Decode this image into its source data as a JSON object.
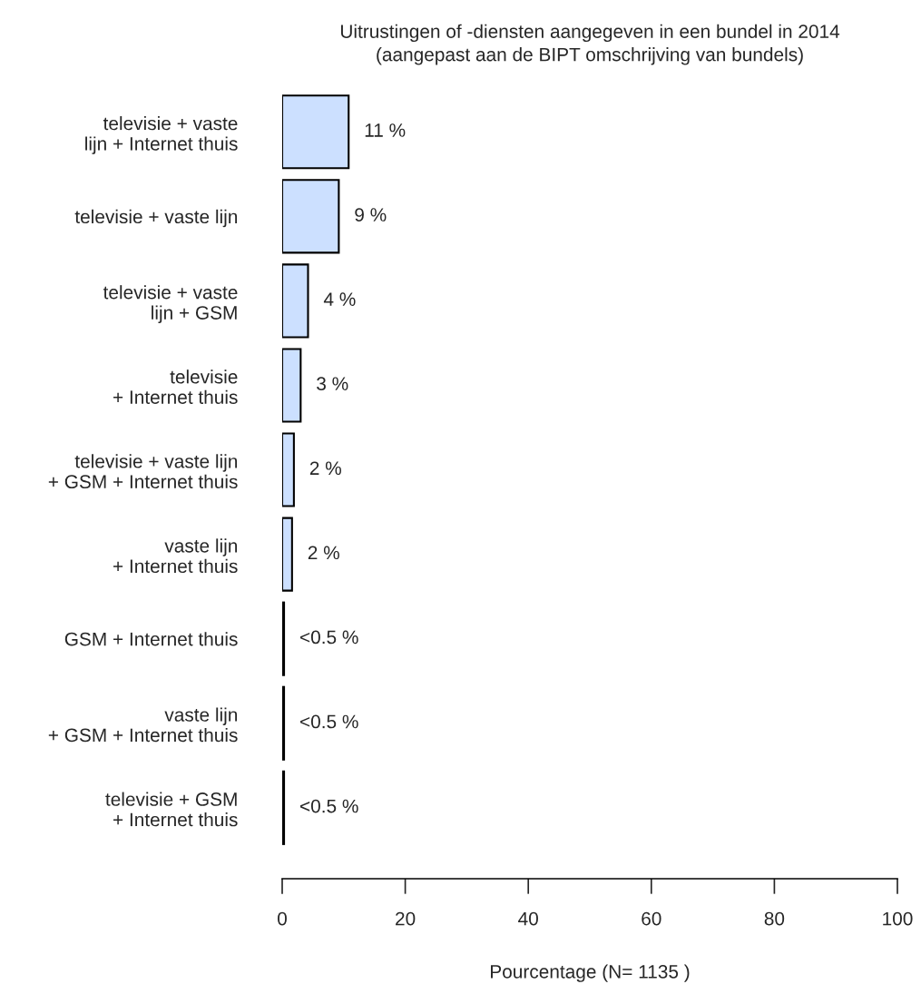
{
  "chart_data": {
    "type": "bar",
    "orientation": "horizontal",
    "title": "Uitrustingen of -diensten aangegeven in een bundel in 2014\n(aangepast aan de BIPT omschrijving van bundels)",
    "xlabel": "Pourcentage (N= 1135 )",
    "categories": [
      "televisie + vaste\nlijn + Internet thuis",
      "televisie + vaste lijn",
      "televisie + vaste\nlijn + GSM",
      "televisie\n+ Internet thuis",
      "televisie + vaste lijn\n+ GSM + Internet thuis",
      "vaste lijn\n+ Internet thuis",
      "GSM + Internet thuis",
      "vaste lijn\n+ GSM + Internet thuis",
      "televisie + GSM\n+ Internet thuis"
    ],
    "values": [
      10.8,
      9.2,
      4.2,
      3.0,
      1.9,
      1.6,
      0.3,
      0.3,
      0.3
    ],
    "value_labels": [
      "11 %",
      "9 %",
      "4 %",
      "3 %",
      "2 %",
      "2 %",
      "<0.5 %",
      "<0.5 %",
      "<0.5 %"
    ],
    "color": "#cce0ff",
    "xlim": [
      0,
      100
    ],
    "xticks": [
      0,
      20,
      40,
      60,
      80,
      100
    ],
    "grid": false,
    "legend": false
  }
}
